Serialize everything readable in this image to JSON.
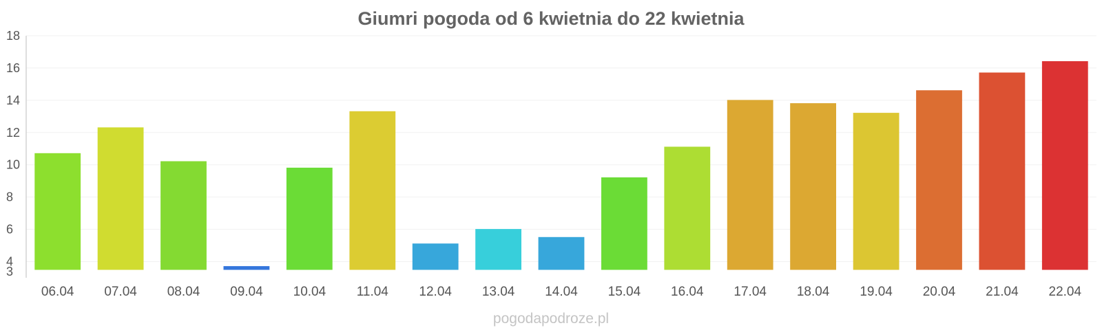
{
  "chart_data": {
    "type": "bar",
    "title": "Giumri pogoda od 6 kwietnia do 22 kwietnia",
    "categories": [
      "06.04",
      "07.04",
      "08.04",
      "09.04",
      "10.04",
      "11.04",
      "12.04",
      "13.04",
      "14.04",
      "15.04",
      "16.04",
      "17.04",
      "18.04",
      "19.04",
      "20.04",
      "21.04",
      "22.04"
    ],
    "values": [
      10.7,
      12.3,
      10.2,
      3.7,
      9.8,
      13.3,
      5.1,
      6.0,
      5.5,
      9.2,
      11.1,
      14.0,
      13.8,
      13.2,
      14.6,
      15.7,
      16.4
    ],
    "colors": [
      "#8ddf2e",
      "#d0dc30",
      "#84da32",
      "#3576dc",
      "#6bdc36",
      "#dccc32",
      "#37a7db",
      "#37cfdb",
      "#37a7db",
      "#6bdc36",
      "#addd33",
      "#dca832",
      "#dca832",
      "#dcc632",
      "#dc6e32",
      "#dc5132",
      "#dc3233"
    ],
    "yticks": [
      3,
      4,
      6,
      8,
      10,
      12,
      14,
      16,
      18
    ],
    "ylim": [
      3,
      18
    ],
    "xlabel": "",
    "ylabel": "",
    "grid": true,
    "legend": "none"
  },
  "watermark": "pogodapodroze.pl"
}
